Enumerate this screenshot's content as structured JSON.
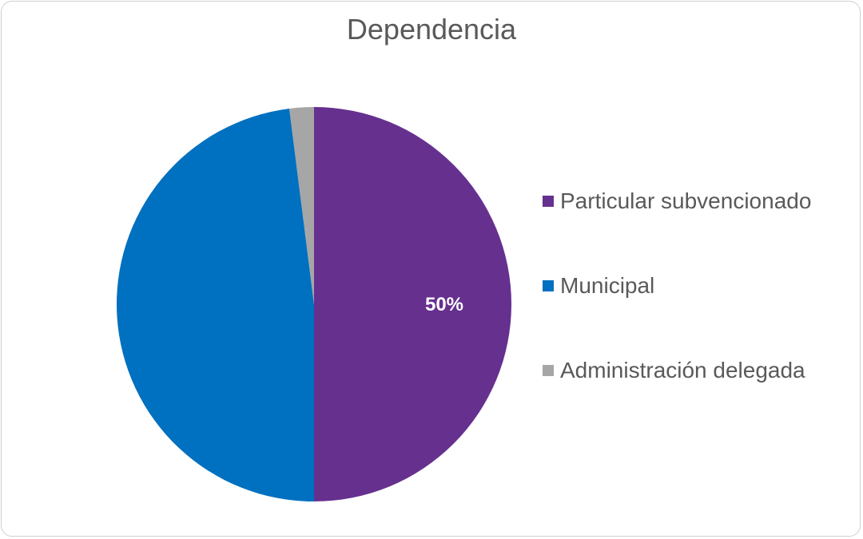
{
  "chart_data": {
    "type": "pie",
    "title": "Dependencia",
    "categories": [
      "Particular subvencionado",
      "Municipal",
      "Administración delegada"
    ],
    "values": [
      50,
      48,
      2
    ],
    "value_unit": "%",
    "colors": [
      "#66308F",
      "#0070C0",
      "#A6A6A6"
    ],
    "data_labels": [
      "50%",
      "",
      ""
    ],
    "legend_position": "right",
    "start_angle": "top, clockwise"
  }
}
